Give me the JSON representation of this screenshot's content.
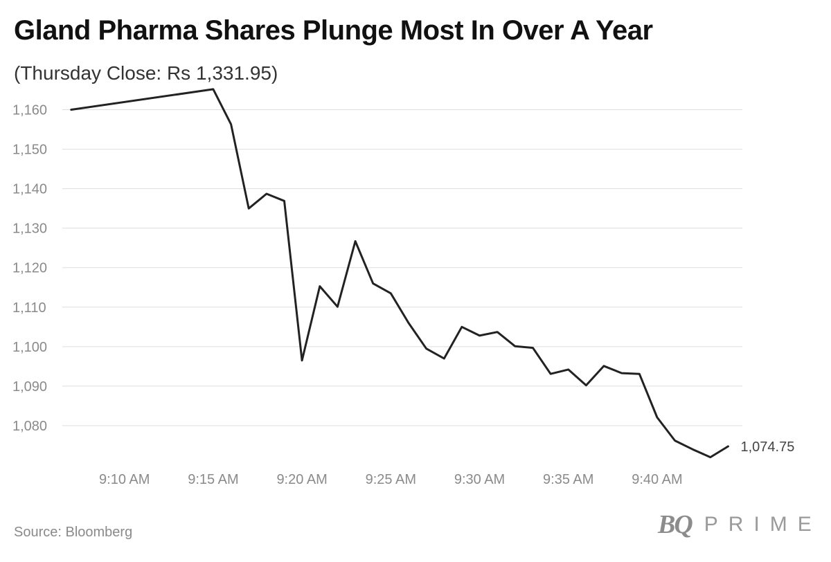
{
  "header": {
    "title": "Gland Pharma Shares Plunge Most In Over A Year",
    "subtitle": "(Thursday Close: Rs 1,331.95)"
  },
  "footer": {
    "source": "Source: Bloomberg",
    "brand_mark": "BQ",
    "brand_word": "PRIME"
  },
  "colors": {
    "line": "#222222",
    "grid": "#dddddd",
    "tick_text": "#8a8a8a",
    "end_label": "#444444"
  },
  "chart_data": {
    "type": "line",
    "title": "Gland Pharma Shares Plunge Most In Over A Year",
    "subtitle": "(Thursday Close: Rs 1,331.95)",
    "xlabel": "",
    "ylabel": "",
    "ylim": [
      1070,
      1165
    ],
    "xlim_minutes": [
      546.5,
      584.8
    ],
    "yticks": [
      1080,
      1090,
      1100,
      1110,
      1120,
      1130,
      1140,
      1150,
      1160
    ],
    "ytick_labels": [
      "1,080",
      "1,090",
      "1,100",
      "1,110",
      "1,120",
      "1,130",
      "1,140",
      "1,150",
      "1,160"
    ],
    "xticks_minutes": [
      550,
      555,
      560,
      565,
      570,
      575,
      580
    ],
    "xtick_labels": [
      "9:10 AM",
      "9:15 AM",
      "9:20 AM",
      "9:25 AM",
      "9:30 AM",
      "9:35 AM",
      "9:40 AM"
    ],
    "grid": true,
    "legend": "none",
    "end_label": "1,074.75",
    "series": [
      {
        "x_minutes": [
          547,
          555,
          556,
          557,
          558,
          559,
          560,
          561,
          562,
          563,
          564,
          565,
          566,
          567,
          568,
          569,
          570,
          571,
          572,
          573,
          574,
          575,
          576,
          577,
          578,
          579,
          580,
          581,
          582,
          583,
          584
        ],
        "values": [
          1160,
          1165.2,
          1156.3,
          1135,
          1138.7,
          1136.9,
          1096.5,
          1115.3,
          1110.1,
          1126.7,
          1116,
          1113.5,
          1106,
          1099.5,
          1097,
          1105,
          1102.8,
          1103.7,
          1100.1,
          1099.7,
          1093.1,
          1094.2,
          1090.2,
          1095.1,
          1093.3,
          1093.1,
          1082.1,
          1076.2,
          1074,
          1072,
          1074.75
        ]
      }
    ]
  }
}
